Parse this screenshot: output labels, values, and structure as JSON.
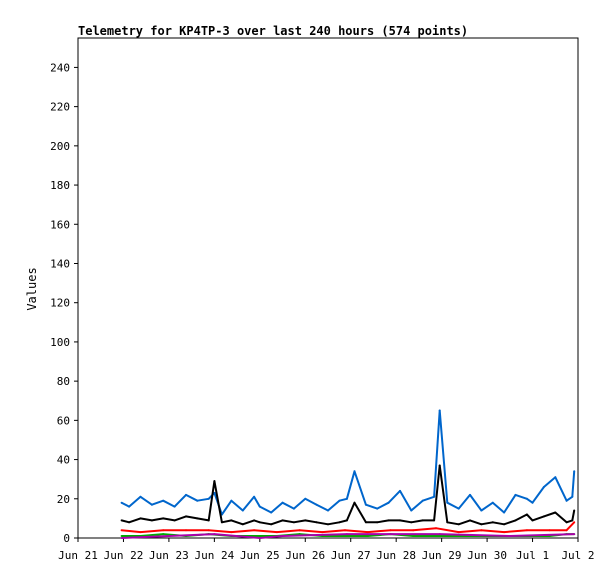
{
  "chart_data": {
    "type": "line",
    "title": "Telemetry for KP4TP-3 over last 240 hours (574 points)",
    "xlabel": "",
    "ylabel": "Values",
    "ylim": [
      0,
      255
    ],
    "yticks": [
      0,
      20,
      40,
      60,
      80,
      100,
      120,
      140,
      160,
      180,
      200,
      220,
      240
    ],
    "xlim": [
      "2024-06-21",
      "2024-07-02"
    ],
    "xtick_labels": [
      "Jun 21",
      "Jun 22",
      "Jun 23",
      "Jun 24",
      "Jun 25",
      "Jun 26",
      "Jun 27",
      "Jun 28",
      "Jun 29",
      "Jun 30",
      "Jul 1",
      "Jul 2"
    ],
    "grid": false,
    "legend": "none",
    "series": [
      {
        "color": "#0066cc",
        "x": [
          "2024-06-21T23:00",
          "2024-06-22T03:00",
          "2024-06-22T09:00",
          "2024-06-22T15:00",
          "2024-06-22T21:00",
          "2024-06-23T03:00",
          "2024-06-23T09:00",
          "2024-06-23T15:00",
          "2024-06-23T21:00",
          "2024-06-24T00:00",
          "2024-06-24T04:00",
          "2024-06-24T09:00",
          "2024-06-24T15:00",
          "2024-06-24T21:00",
          "2024-06-25T00:00",
          "2024-06-25T06:00",
          "2024-06-25T12:00",
          "2024-06-25T18:00",
          "2024-06-26T00:00",
          "2024-06-26T06:00",
          "2024-06-26T12:00",
          "2024-06-26T18:00",
          "2024-06-26T22:00",
          "2024-06-27T02:00",
          "2024-06-27T08:00",
          "2024-06-27T14:00",
          "2024-06-27T20:00",
          "2024-06-28T02:00",
          "2024-06-28T08:00",
          "2024-06-28T14:00",
          "2024-06-28T20:00",
          "2024-06-28T23:00",
          "2024-06-29T03:00",
          "2024-06-29T09:00",
          "2024-06-29T15:00",
          "2024-06-29T21:00",
          "2024-06-30T03:00",
          "2024-06-30T09:00",
          "2024-06-30T15:00",
          "2024-06-30T21:00",
          "2024-07-01T00:00",
          "2024-07-01T06:00",
          "2024-07-01T12:00",
          "2024-07-01T18:00",
          "2024-07-01T21:00",
          "2024-07-01T22:00"
        ],
        "values": [
          18,
          16,
          21,
          17,
          19,
          16,
          22,
          19,
          20,
          23,
          12,
          19,
          14,
          21,
          16,
          13,
          18,
          15,
          20,
          17,
          14,
          19,
          20,
          34,
          17,
          15,
          18,
          24,
          14,
          19,
          21,
          65,
          18,
          15,
          22,
          14,
          18,
          13,
          22,
          20,
          18,
          26,
          31,
          19,
          21,
          34
        ]
      },
      {
        "color": "#000000",
        "x": [
          "2024-06-21T23:00",
          "2024-06-22T03:00",
          "2024-06-22T09:00",
          "2024-06-22T15:00",
          "2024-06-22T21:00",
          "2024-06-23T03:00",
          "2024-06-23T09:00",
          "2024-06-23T15:00",
          "2024-06-23T21:00",
          "2024-06-24T00:00",
          "2024-06-24T04:00",
          "2024-06-24T09:00",
          "2024-06-24T15:00",
          "2024-06-24T21:00",
          "2024-06-25T00:00",
          "2024-06-25T06:00",
          "2024-06-25T12:00",
          "2024-06-25T18:00",
          "2024-06-26T00:00",
          "2024-06-26T06:00",
          "2024-06-26T12:00",
          "2024-06-26T18:00",
          "2024-06-26T22:00",
          "2024-06-27T02:00",
          "2024-06-27T08:00",
          "2024-06-27T14:00",
          "2024-06-27T20:00",
          "2024-06-28T02:00",
          "2024-06-28T08:00",
          "2024-06-28T14:00",
          "2024-06-28T20:00",
          "2024-06-28T23:00",
          "2024-06-29T03:00",
          "2024-06-29T09:00",
          "2024-06-29T15:00",
          "2024-06-29T21:00",
          "2024-06-30T03:00",
          "2024-06-30T09:00",
          "2024-06-30T15:00",
          "2024-06-30T21:00",
          "2024-07-01T00:00",
          "2024-07-01T06:00",
          "2024-07-01T12:00",
          "2024-07-01T18:00",
          "2024-07-01T21:00",
          "2024-07-01T22:00"
        ],
        "values": [
          9,
          8,
          10,
          9,
          10,
          9,
          11,
          10,
          9,
          29,
          8,
          9,
          7,
          9,
          8,
          7,
          9,
          8,
          9,
          8,
          7,
          8,
          9,
          18,
          8,
          8,
          9,
          9,
          8,
          9,
          9,
          37,
          8,
          7,
          9,
          7,
          8,
          7,
          9,
          12,
          9,
          11,
          13,
          8,
          9,
          14
        ]
      },
      {
        "color": "#ff0000",
        "x": [
          "2024-06-21T23:00",
          "2024-06-22T09:00",
          "2024-06-22T21:00",
          "2024-06-23T09:00",
          "2024-06-23T21:00",
          "2024-06-24T09:00",
          "2024-06-24T21:00",
          "2024-06-25T09:00",
          "2024-06-25T21:00",
          "2024-06-26T09:00",
          "2024-06-26T21:00",
          "2024-06-27T09:00",
          "2024-06-27T21:00",
          "2024-06-28T09:00",
          "2024-06-28T21:00",
          "2024-06-29T09:00",
          "2024-06-29T21:00",
          "2024-06-30T09:00",
          "2024-06-30T21:00",
          "2024-07-01T09:00",
          "2024-07-01T18:00",
          "2024-07-01T22:00"
        ],
        "values": [
          4,
          3,
          4,
          4,
          4,
          3,
          4,
          3,
          4,
          3,
          4,
          3,
          4,
          4,
          5,
          3,
          4,
          3,
          4,
          4,
          4,
          8
        ]
      },
      {
        "color": "#00aa00",
        "x": [
          "2024-06-21T23:00",
          "2024-06-22T09:00",
          "2024-06-22T21:00",
          "2024-06-23T09:00",
          "2024-06-23T21:00",
          "2024-06-24T09:00",
          "2024-06-24T21:00",
          "2024-06-25T09:00",
          "2024-06-25T21:00",
          "2024-06-26T09:00",
          "2024-06-26T21:00",
          "2024-06-27T09:00",
          "2024-06-27T21:00",
          "2024-06-28T09:00",
          "2024-06-28T21:00",
          "2024-06-29T09:00",
          "2024-06-29T21:00",
          "2024-06-30T09:00",
          "2024-06-30T21:00",
          "2024-07-01T09:00",
          "2024-07-01T18:00",
          "2024-07-01T22:00"
        ],
        "values": [
          1,
          1,
          2,
          1,
          2,
          1,
          1,
          1,
          2,
          1,
          1,
          1,
          2,
          1,
          1,
          1,
          1,
          1,
          1,
          1,
          2,
          2
        ]
      },
      {
        "color": "#aa00aa",
        "x": [
          "2024-06-21T23:00",
          "2024-06-24T00:00",
          "2024-06-25T00:00",
          "2024-06-25T12:00",
          "2024-06-26T22:00",
          "2024-06-28T23:00",
          "2024-06-30T12:00",
          "2024-07-01T22:00"
        ],
        "values": [
          0,
          2,
          0,
          1,
          2,
          2,
          1,
          2
        ]
      }
    ]
  }
}
